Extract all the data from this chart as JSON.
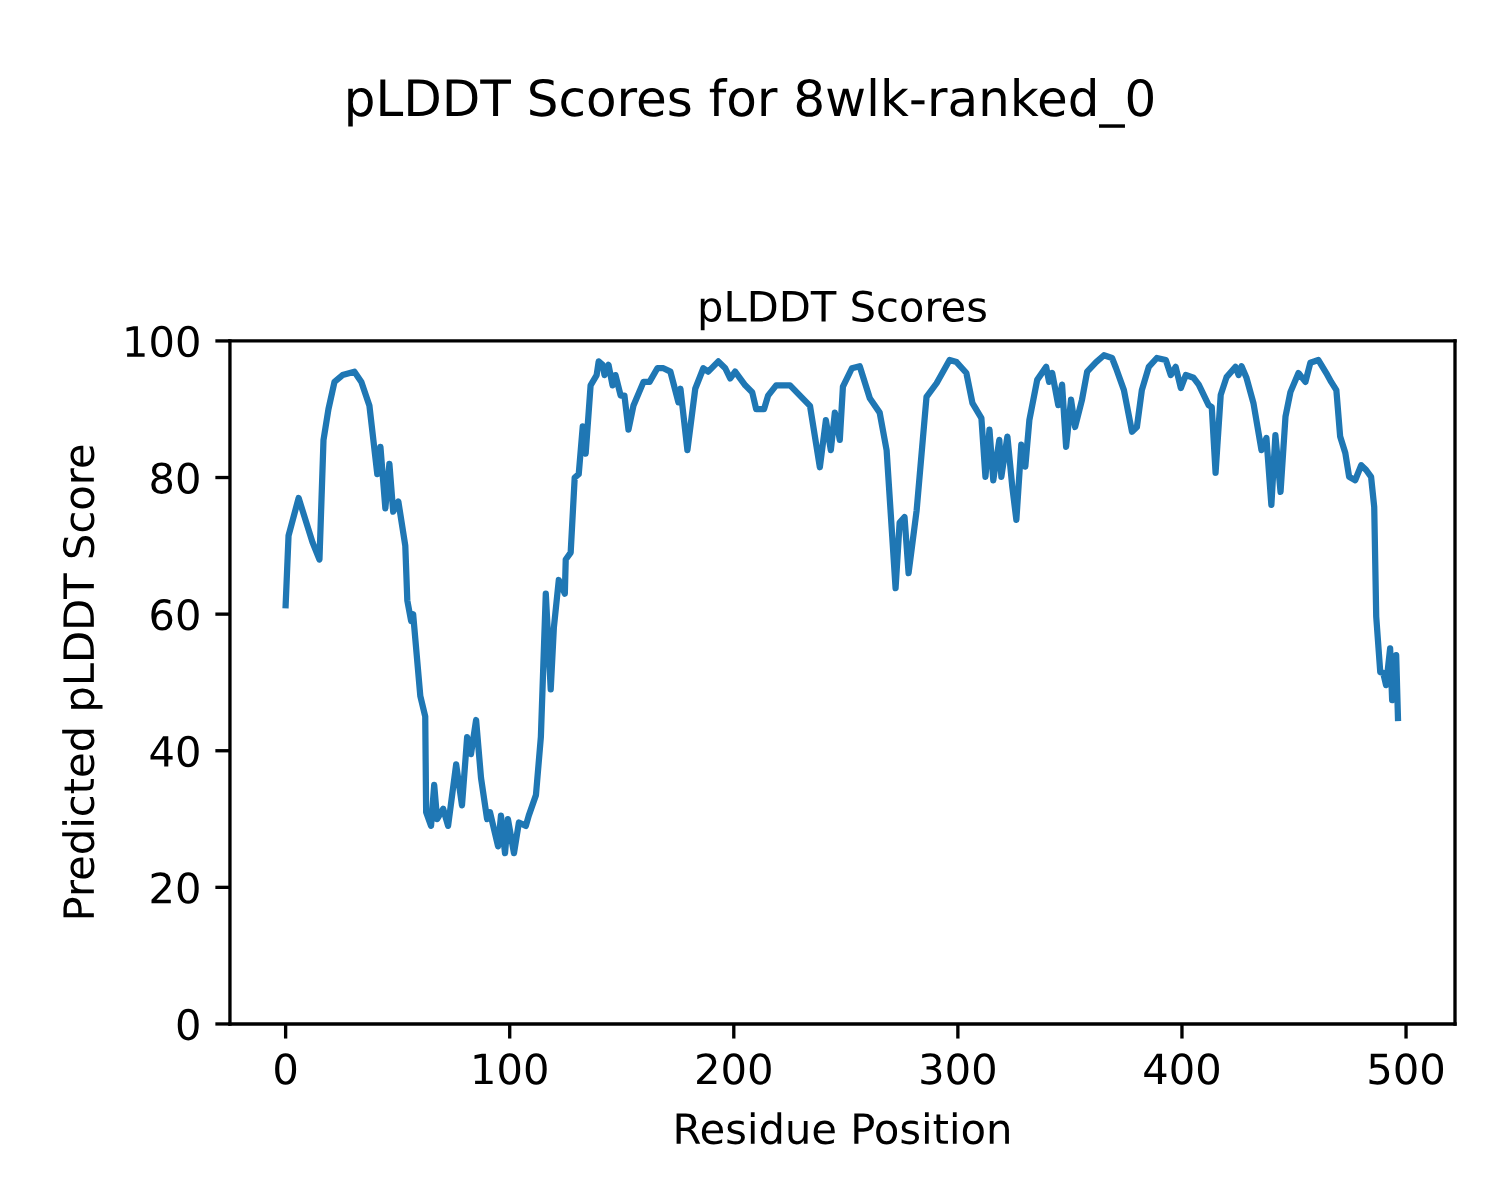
{
  "chart_data": {
    "type": "line",
    "title": "pLDDT Scores for 8wlk-ranked_0",
    "subtitle": "pLDDT Scores",
    "xlabel": "Residue Position",
    "ylabel": "Predicted pLDDT Score",
    "xlim": [
      -24.85,
      521.85
    ],
    "xticks": [
      0,
      100,
      200,
      300,
      400,
      500
    ],
    "ylim": [
      0,
      100
    ],
    "yticks": [
      0,
      20,
      40,
      60,
      80,
      100
    ],
    "grid": false,
    "legend": false,
    "series": [
      {
        "color": "#1f77b4",
        "x": [
          0,
          1.3,
          5.8,
          12,
          15.1,
          16.9,
          19.1,
          21.8,
          25.4,
          30.7,
          33.8,
          37.4,
          40.9,
          42.3,
          44.5,
          46.3,
          48,
          50.3,
          53.4,
          54.3,
          56,
          56.9,
          60.1,
          62.3,
          62.7,
          64.9,
          66.3,
          67.6,
          70.3,
          72.5,
          76.1,
          78.7,
          81,
          82.7,
          85,
          87.2,
          89.9,
          91.2,
          94.8,
          96.1,
          97.9,
          99.2,
          101.9,
          104.1,
          107.2,
          108.5,
          111.7,
          113.9,
          116.1,
          118.3,
          119.7,
          121.9,
          124.6,
          125,
          127.2,
          129,
          130.8,
          132.6,
          133.9,
          136.1,
          138.8,
          139.7,
          141.5,
          142.3,
          144.1,
          145.9,
          147.2,
          149.5,
          151.2,
          153,
          155.2,
          159.7,
          162.4,
          165.9,
          168.6,
          171.7,
          175.3,
          176.2,
          179.3,
          182.8,
          186.4,
          188.6,
          193.1,
          196.2,
          198.4,
          200.6,
          205.1,
          208.2,
          210,
          213.5,
          215.3,
          218.9,
          220.6,
          225.1,
          234,
          238.4,
          241.1,
          243.3,
          245.1,
          247.3,
          248.7,
          252.7,
          256.2,
          260.7,
          265.1,
          268.2,
          272.2,
          274,
          276.2,
          278,
          281.6,
          286,
          290.5,
          296.3,
          299.4,
          303.8,
          306.5,
          310.5,
          312.3,
          314.1,
          315.8,
          318.5,
          319.4,
          322.1,
          324.3,
          326.1,
          328.3,
          330.1,
          331.9,
          335.4,
          339.4,
          340.7,
          342.1,
          344.8,
          346.5,
          348.3,
          350.5,
          352.3,
          355.4,
          357.7,
          361.7,
          365.2,
          368.8,
          370.6,
          374.1,
          377.7,
          379.9,
          382.1,
          385.2,
          388.8,
          392.8,
          395,
          397.2,
          399.5,
          401.7,
          405.2,
          407.5,
          411.9,
          413.3,
          415,
          417.3,
          419.9,
          423.9,
          425.3,
          426.6,
          428.8,
          431.9,
          435.5,
          437.7,
          439.9,
          441.7,
          444,
          446.2,
          448.4,
          452,
          455.1,
          457.3,
          460.9,
          464.4,
          466.6,
          468.9,
          470.6,
          472.9,
          474.6,
          477.3,
          480,
          482.2,
          484.4,
          485.8,
          486.7,
          488.5,
          489.8,
          491.1,
          492.9,
          493.8,
          495.6,
          496.4
        ],
        "values": [
          61.3,
          71.5,
          77,
          70.5,
          68,
          85.5,
          90,
          94,
          95,
          95.5,
          94,
          90.5,
          80.5,
          84.5,
          75.5,
          82,
          75,
          76.5,
          70,
          62,
          59,
          60,
          48,
          45,
          31,
          29,
          35,
          30,
          31.5,
          29,
          38,
          32,
          42,
          39.5,
          44.5,
          36,
          30,
          31,
          26,
          30.5,
          25,
          30,
          25,
          29.5,
          29,
          30.5,
          33.5,
          42,
          63,
          49,
          58,
          65,
          63,
          68,
          69,
          80,
          80.5,
          87.5,
          83.5,
          93.5,
          95,
          97,
          96.5,
          95,
          96.5,
          93.5,
          95,
          92,
          92,
          87,
          90.5,
          94,
          94,
          96,
          96,
          95.5,
          91,
          93,
          84,
          93,
          96,
          95.5,
          97,
          96,
          94.5,
          95.5,
          93.5,
          92.5,
          90,
          90,
          92,
          93.5,
          93.5,
          93.5,
          90.5,
          81.5,
          88.4,
          84,
          89.5,
          85.5,
          93.3,
          96,
          96.3,
          91.6,
          89.5,
          84,
          63.8,
          73.4,
          74.2,
          66,
          75.2,
          91.8,
          93.8,
          97.2,
          96.9,
          95.3,
          90.9,
          88.7,
          80.1,
          87,
          79.6,
          85.5,
          80.1,
          86,
          78.6,
          73.8,
          84.8,
          81.6,
          88.4,
          94.3,
          96.2,
          94,
          95.3,
          90.6,
          93.6,
          84.5,
          91.4,
          87.4,
          91.4,
          95.5,
          96.9,
          97.9,
          97.5,
          96,
          92.8,
          86.7,
          87.4,
          92.8,
          96.2,
          97.5,
          97.2,
          95,
          96.2,
          93.1,
          95,
          94.6,
          93.6,
          90.6,
          90.3,
          80.7,
          92.1,
          94.7,
          96.2,
          95,
          96.3,
          94.6,
          90.9,
          84,
          85.8,
          76,
          86.2,
          77.9,
          88.9,
          92.5,
          95.3,
          94,
          96.8,
          97.2,
          95.3,
          94,
          92.8,
          86,
          83.6,
          80.1,
          79.6,
          81.8,
          81.1,
          80.1,
          75.7,
          59.6,
          51.5,
          51.4,
          49.6,
          55,
          47.4,
          54,
          44.8
        ]
      }
    ]
  }
}
